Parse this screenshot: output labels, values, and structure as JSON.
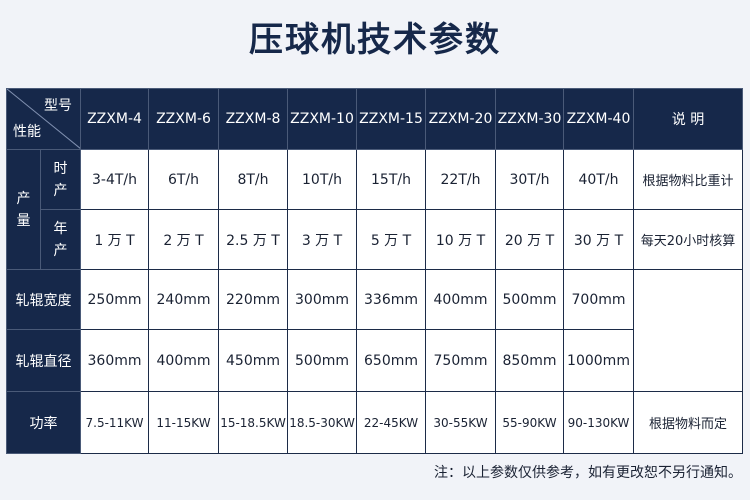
{
  "title": "压球机技术参数",
  "table": {
    "header": {
      "corner_top": "型号",
      "corner_bottom": "性能",
      "models": [
        "ZZXM-4",
        "ZZXM-6",
        "ZZXM-8",
        "ZZXM-10",
        "ZZXM-15",
        "ZZXM-20",
        "ZZXM-30",
        "ZZXM-40"
      ],
      "note_col": "说 明"
    },
    "group_label": "产量",
    "rows": [
      {
        "label": "时产",
        "values": [
          "3-4T/h",
          "6T/h",
          "8T/h",
          "10T/h",
          "15T/h",
          "22T/h",
          "30T/h",
          "40T/h"
        ],
        "note": "根据物料比重计"
      },
      {
        "label": "年产",
        "values": [
          "1 万 T",
          "2 万 T",
          "2.5 万 T",
          "3 万 T",
          "5 万  T",
          "10 万 T",
          "20 万 T",
          "30 万 T"
        ],
        "note": "每天20小时核算"
      },
      {
        "label": "轧辊宽度",
        "values": [
          "250mm",
          "240mm",
          "220mm",
          "300mm",
          "336mm",
          "400mm",
          "500mm",
          "700mm"
        ]
      },
      {
        "label": "轧辊直径",
        "values": [
          "360mm",
          "400mm",
          "450mm",
          "500mm",
          "650mm",
          "750mm",
          "850mm",
          "1000mm"
        ]
      },
      {
        "label": "功率",
        "values": [
          "7.5-11KW",
          "11-15KW",
          "15-18.5KW",
          "18.5-30KW",
          "22-45KW",
          "30-55KW",
          "55-90KW",
          "90-130KW"
        ],
        "note": "根据物料而定"
      }
    ]
  },
  "footnote": "注：以上参数仅供参考，如有更改恕不另行通知。"
}
